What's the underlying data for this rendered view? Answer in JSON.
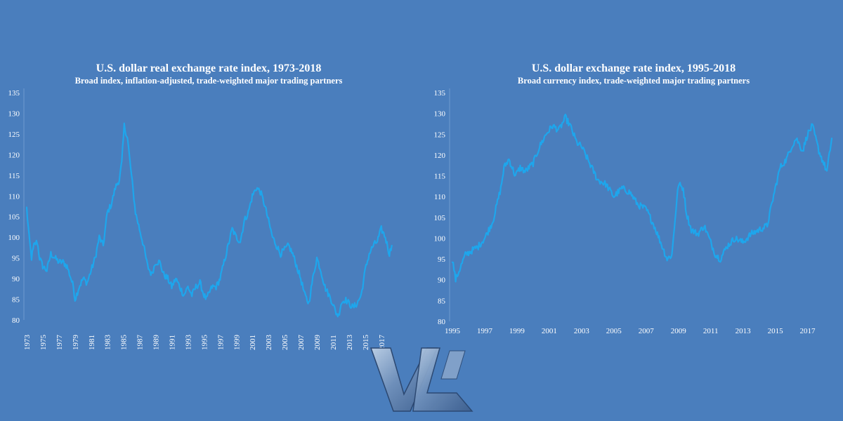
{
  "chart_data": [
    {
      "type": "line",
      "title": "U.S. dollar real exchange rate index, 1973-2018",
      "subtitle": "Broad index, inflation-adjusted, trade-weighted major trading partners",
      "xlabel": "",
      "ylabel": "",
      "xlim": [
        1973,
        2018.5
      ],
      "ylim": [
        80,
        135
      ],
      "y_ticks": [
        80,
        85,
        90,
        95,
        100,
        105,
        110,
        115,
        120,
        125,
        130,
        135
      ],
      "x_ticks": [
        "1973",
        "1975",
        "1977",
        "1979",
        "1981",
        "1983",
        "1985",
        "1987",
        "1989",
        "1991",
        "1993",
        "1995",
        "1997",
        "1999",
        "2001",
        "2003",
        "2005",
        "2007",
        "2009",
        "2011",
        "2013",
        "2015",
        "2017"
      ],
      "x_tick_rotation": -90,
      "grid": false,
      "legend": "none",
      "line_color": "#1ea6ec",
      "series": [
        {
          "x": [
            1973.0,
            1973.3,
            1973.6,
            1973.9,
            1974.3,
            1974.6,
            1975.0,
            1975.5,
            1976.0,
            1976.5,
            1977.0,
            1977.5,
            1978.0,
            1978.5,
            1978.8,
            1979.0,
            1979.5,
            1980.0,
            1980.5,
            1981.0,
            1981.5,
            1982.0,
            1982.5,
            1983.0,
            1983.5,
            1984.0,
            1984.5,
            1984.8,
            1985.1,
            1985.5,
            1986.0,
            1986.5,
            1987.0,
            1987.5,
            1988.0,
            1988.5,
            1989.0,
            1989.5,
            1990.0,
            1990.5,
            1991.0,
            1991.5,
            1992.0,
            1992.5,
            1993.0,
            1993.5,
            1994.0,
            1994.5,
            1995.0,
            1995.3,
            1996.0,
            1996.5,
            1997.0,
            1997.5,
            1998.0,
            1998.5,
            1999.0,
            1999.5,
            2000.0,
            2000.5,
            2001.0,
            2001.5,
            2002.0,
            2002.5,
            2003.0,
            2003.5,
            2004.0,
            2004.5,
            2005.0,
            2005.5,
            2006.0,
            2006.5,
            2007.0,
            2007.5,
            2008.0,
            2008.5,
            2009.0,
            2009.5,
            2010.0,
            2010.5,
            2011.0,
            2011.3,
            2011.7,
            2012.0,
            2012.5,
            2013.0,
            2013.5,
            2014.0,
            2014.5,
            2015.0,
            2015.5,
            2016.0,
            2016.5,
            2017.0,
            2017.5,
            2018.0,
            2018.3
          ],
          "y": [
            107,
            100,
            95,
            98,
            99,
            95,
            93,
            92,
            96,
            95,
            94,
            94,
            93,
            90,
            88,
            85,
            88,
            90,
            89,
            92,
            95,
            100,
            98,
            106,
            108,
            112,
            114,
            118,
            127,
            124,
            115,
            106,
            102,
            98,
            93,
            91,
            94,
            94,
            91,
            90,
            88,
            90,
            88,
            86,
            88,
            86,
            88,
            89,
            86,
            85,
            88,
            88,
            90,
            94,
            98,
            102,
            100,
            99,
            104,
            106,
            110,
            112,
            111,
            108,
            104,
            100,
            98,
            96,
            97,
            98,
            96,
            93,
            90,
            86,
            84,
            90,
            95,
            92,
            88,
            86,
            84,
            82,
            81,
            84,
            85,
            84,
            83,
            84,
            86,
            92,
            96,
            98,
            99,
            102,
            100,
            96,
            98
          ]
        }
      ]
    },
    {
      "type": "line",
      "title": "U.S. dollar exchange rate index, 1995-2018",
      "subtitle": "Broad currency index, trade-weighted major trading partners",
      "xlabel": "",
      "ylabel": "",
      "xlim": [
        1995,
        2018.5
      ],
      "ylim": [
        80,
        135
      ],
      "y_ticks": [
        80,
        85,
        90,
        95,
        100,
        105,
        110,
        115,
        120,
        125,
        130,
        135
      ],
      "x_ticks": [
        "1995",
        "1997",
        "1999",
        "2001",
        "2003",
        "2005",
        "2007",
        "2009",
        "2011",
        "2013",
        "2015",
        "2017"
      ],
      "x_tick_rotation": 0,
      "grid": false,
      "legend": "none",
      "line_color": "#1ea6ec",
      "series": [
        {
          "x": [
            1995.0,
            1995.2,
            1995.5,
            1995.8,
            1996.2,
            1996.6,
            1997.0,
            1997.5,
            1998.0,
            1998.2,
            1998.5,
            1998.9,
            1999.2,
            1999.5,
            2000.0,
            2000.4,
            2000.8,
            2001.2,
            2001.6,
            2002.0,
            2002.3,
            2002.7,
            2003.0,
            2003.5,
            2004.0,
            2004.5,
            2005.0,
            2005.5,
            2006.0,
            2006.5,
            2007.0,
            2007.5,
            2008.0,
            2008.3,
            2008.6,
            2008.8,
            2009.0,
            2009.3,
            2009.5,
            2009.8,
            2010.2,
            2010.6,
            2011.0,
            2011.3,
            2011.6,
            2012.0,
            2012.5,
            2013.0,
            2013.5,
            2014.0,
            2014.5,
            2015.0,
            2015.3,
            2015.7,
            2016.0,
            2016.3,
            2016.7,
            2017.0,
            2017.3,
            2017.7,
            2018.0,
            2018.2,
            2018.5
          ],
          "y": [
            95,
            90,
            93,
            96,
            97,
            98,
            100,
            104,
            112,
            117,
            119,
            115,
            117,
            116,
            118,
            122,
            125,
            127,
            126,
            129,
            127,
            123,
            122,
            118,
            114,
            113,
            110,
            112,
            111,
            108,
            107,
            103,
            98,
            95,
            96,
            105,
            113,
            112,
            106,
            102,
            101,
            103,
            99,
            96,
            95,
            98,
            100,
            99,
            101,
            102,
            103,
            112,
            117,
            119,
            122,
            124,
            121,
            125,
            127,
            121,
            118,
            116,
            124
          ]
        }
      ]
    }
  ],
  "watermark": {
    "text": "VV",
    "icon": "vw-logo"
  }
}
